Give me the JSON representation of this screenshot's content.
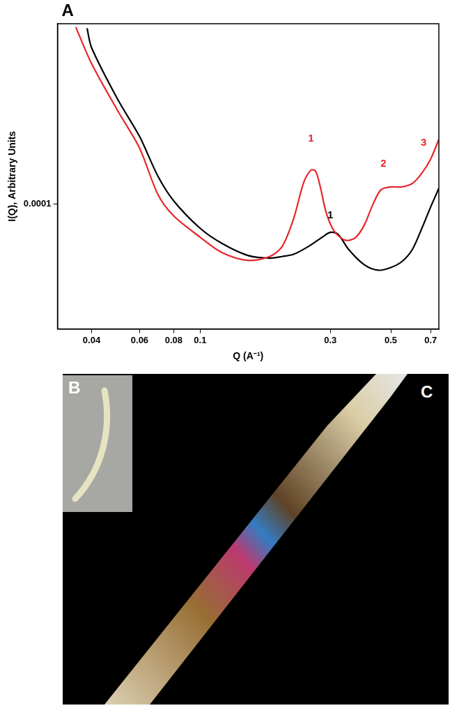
{
  "chart_data": {
    "type": "line",
    "log": true,
    "grid": false,
    "panel": "A",
    "x_label": "Q (A⁻¹)",
    "y_label": "I(Q), Arbitrary Units",
    "xlim": [
      0.03,
      0.75
    ],
    "xticks": [
      0.04,
      0.06,
      0.08,
      0.1,
      0.3,
      0.5,
      0.7
    ],
    "ylim": [
      2.4e-05,
      0.00079
    ],
    "yticks": [
      0.0001
    ],
    "series": [
      {
        "color": "#e8262a",
        "x": [
          0.035,
          0.04,
          0.05,
          0.06,
          0.07,
          0.08,
          0.1,
          0.12,
          0.15,
          0.18,
          0.2,
          0.22,
          0.24,
          0.255,
          0.265,
          0.275,
          0.29,
          0.31,
          0.34,
          0.37,
          0.4,
          0.43,
          0.46,
          0.5,
          0.55,
          0.6,
          0.65,
          0.7,
          0.75
        ],
        "values": [
          0.00076,
          0.0005,
          0.00029,
          0.00019,
          0.000112,
          8.75e-05,
          6.86e-05,
          5.76e-05,
          5.26e-05,
          5.5e-05,
          6.18e-05,
          8.46e-05,
          0.000129,
          0.000148,
          0.000146,
          0.000124,
          9.07e-05,
          7.36e-05,
          6.63e-05,
          6.8e-05,
          7.9e-05,
          0.0001,
          0.000118,
          0.000122,
          0.000122,
          0.000127,
          0.000143,
          0.000168,
          0.00021
        ]
      },
      {
        "color": "#000000",
        "x": [
          0.0385,
          0.04,
          0.05,
          0.06,
          0.07,
          0.08,
          0.1,
          0.12,
          0.15,
          0.18,
          0.2,
          0.22,
          0.25,
          0.28,
          0.3,
          0.32,
          0.35,
          0.4,
          0.45,
          0.5,
          0.55,
          0.6,
          0.65,
          0.7,
          0.75
        ],
        "values": [
          0.00075,
          0.0006,
          0.00033,
          0.000217,
          0.000138,
          0.000104,
          7.6e-05,
          6.4e-05,
          5.56e-05,
          5.4e-05,
          5.5e-05,
          5.64e-05,
          6.18e-05,
          6.86e-05,
          7.25e-05,
          7.1e-05,
          5.97e-05,
          5e-05,
          4.7e-05,
          4.85e-05,
          5.2e-05,
          5.97e-05,
          7.6e-05,
          9.7e-05,
          0.00012
        ]
      }
    ],
    "annotations": [
      {
        "text": "1",
        "x": 0.255,
        "y": 0.0002,
        "color": "#e8262a"
      },
      {
        "text": "2",
        "x": 0.47,
        "y": 0.00015,
        "color": "#e8262a"
      },
      {
        "text": "3",
        "x": 0.66,
        "y": 0.00019,
        "color": "#e8262a"
      },
      {
        "text": "1",
        "x": 0.3,
        "y": 8.3e-05,
        "color": "#000000"
      }
    ]
  },
  "photo_panels": [
    {
      "label": "B"
    },
    {
      "label": "C"
    }
  ]
}
